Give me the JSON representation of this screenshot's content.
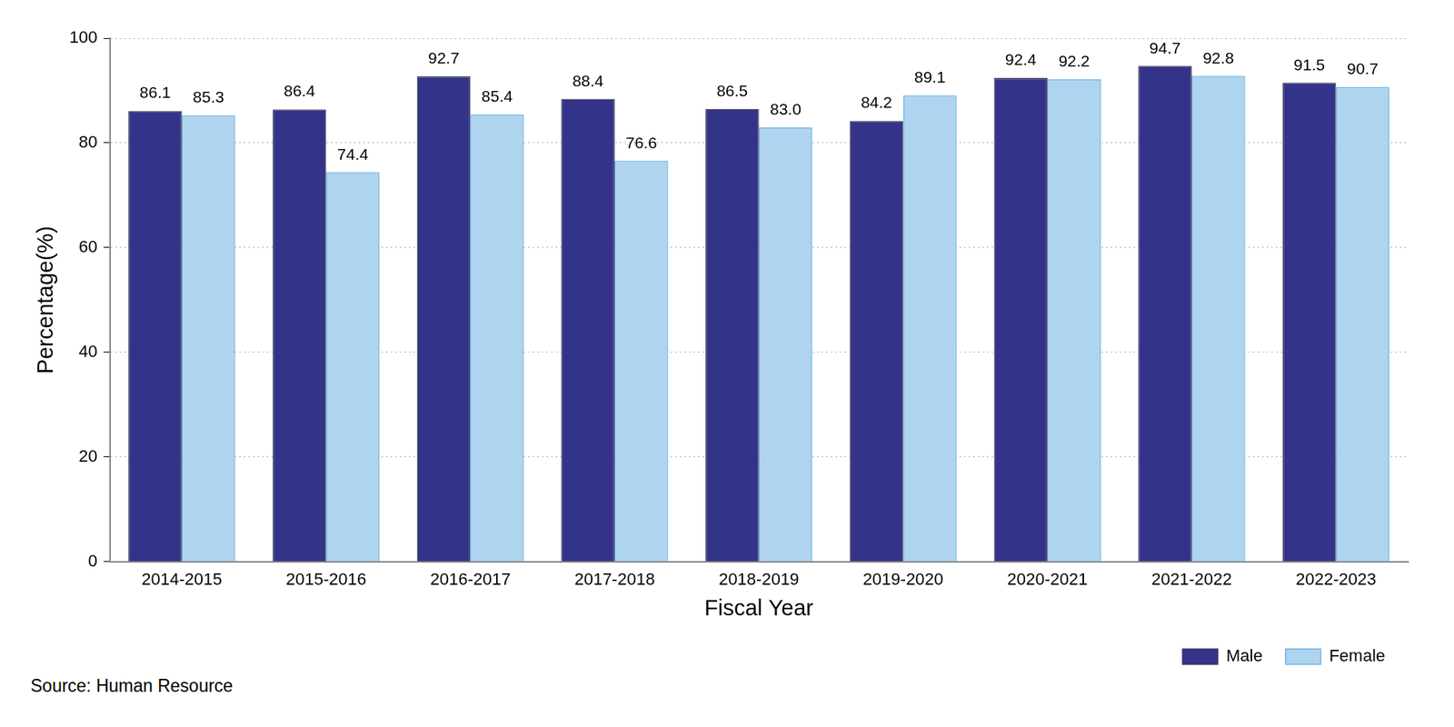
{
  "chart_data": {
    "type": "bar",
    "x_label": "Fiscal Year",
    "y_label": "Percentage(%)",
    "categories": [
      "2014-2015",
      "2015-2016",
      "2016-2017",
      "2017-2018",
      "2018-2019",
      "2019-2020",
      "2020-2021",
      "2021-2022",
      "2022-2023"
    ],
    "series": [
      {
        "name": "Male",
        "color": "#34338a",
        "values": [
          86.1,
          86.4,
          92.7,
          88.4,
          86.5,
          84.2,
          92.4,
          94.7,
          91.5
        ],
        "value_labels": [
          "86.1",
          "86.4",
          "92.7",
          "88.4",
          "86.5",
          "84.2",
          "92.4",
          "94.7",
          "91.5"
        ]
      },
      {
        "name": "Female",
        "color": "#aed4f0",
        "values": [
          85.3,
          74.4,
          85.4,
          76.6,
          83.0,
          89.1,
          92.2,
          92.8,
          90.7
        ],
        "value_labels": [
          "85.3",
          "74.4",
          "85.4",
          "76.6",
          "83.0",
          "89.1",
          "92.2",
          "92.8",
          "90.7"
        ]
      }
    ],
    "ylim": [
      0,
      100
    ],
    "yticks": [
      0,
      20,
      40,
      60,
      80,
      100
    ],
    "grid": true,
    "legend": "bottom-right",
    "data_labels": true,
    "annotations": [
      "Source: Human Resource"
    ]
  }
}
